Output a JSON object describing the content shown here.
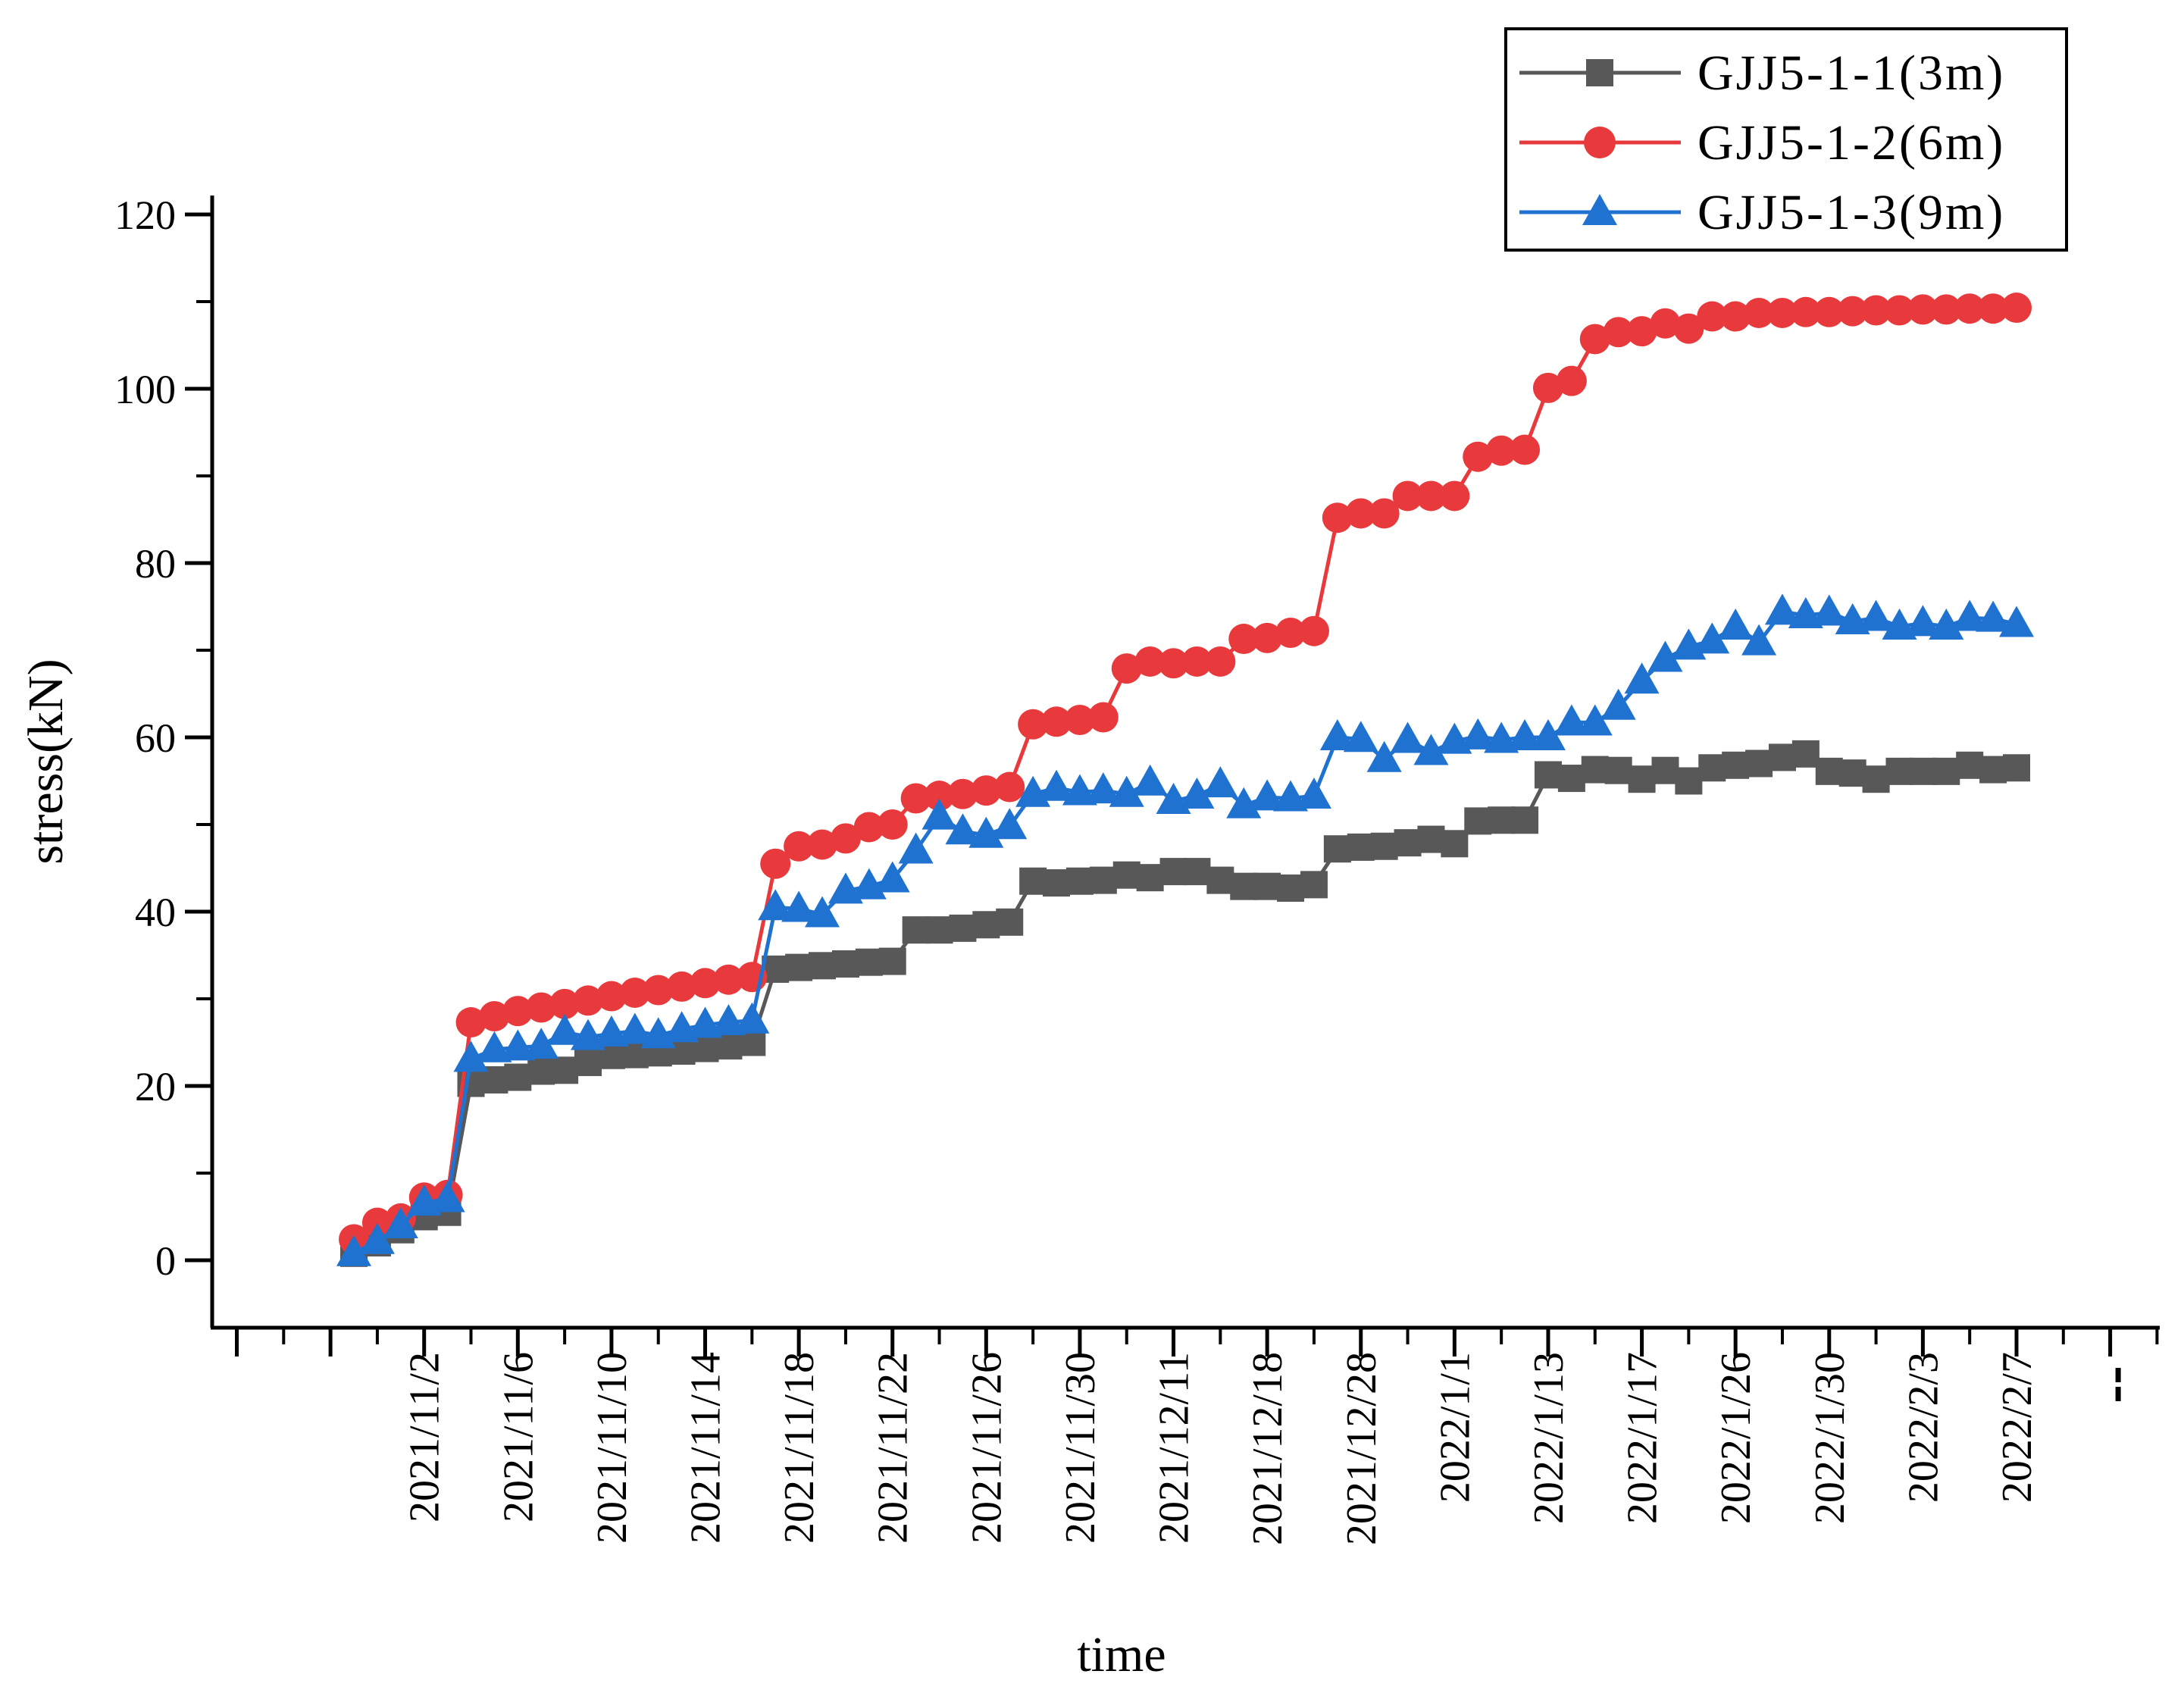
{
  "chart_data": {
    "type": "line",
    "title": "",
    "xlabel": "time",
    "ylabel": "stress(kN)",
    "ylim": [
      0,
      120
    ],
    "y_major_step": 20,
    "y_minor_step": 10,
    "grid": "off",
    "legend_position": "top-right",
    "axis_color": "#000000",
    "n_points": 72,
    "x_labels": [
      {
        "i": 3,
        "text": "2021/11/2"
      },
      {
        "i": 7,
        "text": "2021/11/6"
      },
      {
        "i": 11,
        "text": "2021/11/10"
      },
      {
        "i": 15,
        "text": "2021/11/14"
      },
      {
        "i": 19,
        "text": "2021/11/18"
      },
      {
        "i": 23,
        "text": "2021/11/22"
      },
      {
        "i": 27,
        "text": "2021/11/26"
      },
      {
        "i": 31,
        "text": "2021/11/30"
      },
      {
        "i": 35,
        "text": "2021/12/11"
      },
      {
        "i": 39,
        "text": "2021/12/18"
      },
      {
        "i": 43,
        "text": "2021/12/28"
      },
      {
        "i": 47,
        "text": "2022/1/1"
      },
      {
        "i": 51,
        "text": "2022/1/13"
      },
      {
        "i": 55,
        "text": "2022/1/17"
      },
      {
        "i": 59,
        "text": "2022/1/26"
      },
      {
        "i": 63,
        "text": "2022/1/30"
      },
      {
        "i": 67,
        "text": "2022/2/3"
      },
      {
        "i": 71,
        "text": "2022/2/7"
      }
    ],
    "x_axis_truncation_mark": {
      "tick_index": 75,
      "glyph": "vertical-dashes"
    },
    "series": [
      {
        "name": "GJJ5-1-1(3m)",
        "marker": "square",
        "color": "#585858",
        "values": [
          0.8,
          2.0,
          3.5,
          5.0,
          5.5,
          20.3,
          20.7,
          21.0,
          21.7,
          21.8,
          22.7,
          23.5,
          23.6,
          23.8,
          24.0,
          24.3,
          24.6,
          25.0,
          33.4,
          33.6,
          33.8,
          34.0,
          34.2,
          34.3,
          37.9,
          37.9,
          38.1,
          38.5,
          38.8,
          43.5,
          43.3,
          43.5,
          43.6,
          44.2,
          43.9,
          44.6,
          44.6,
          43.6,
          42.9,
          42.9,
          42.7,
          43.1,
          47.2,
          47.4,
          47.5,
          47.9,
          48.3,
          47.8,
          50.4,
          50.5,
          50.5,
          55.7,
          55.3,
          56.3,
          56.2,
          55.2,
          56.2,
          55.0,
          56.5,
          56.8,
          57.0,
          57.7,
          58.1,
          56.1,
          55.9,
          55.2,
          56.1,
          56.1,
          56.1,
          56.8,
          56.3,
          56.5
        ]
      },
      {
        "name": "GJJ5-1-2(6m)",
        "marker": "circle",
        "color": "#E83A3C",
        "values": [
          2.4,
          4.3,
          4.8,
          7.2,
          7.5,
          27.3,
          28.0,
          28.6,
          29.0,
          29.4,
          29.8,
          30.3,
          30.7,
          31.0,
          31.4,
          31.8,
          32.2,
          32.5,
          45.5,
          47.5,
          47.7,
          48.4,
          49.7,
          50.0,
          53.0,
          53.3,
          53.5,
          53.9,
          54.3,
          61.5,
          61.8,
          62.0,
          62.3,
          67.9,
          68.7,
          68.5,
          68.7,
          68.7,
          71.3,
          71.4,
          72.0,
          72.2,
          85.2,
          85.7,
          85.7,
          87.7,
          87.7,
          87.7,
          92.2,
          92.9,
          93.0,
          100.1,
          100.9,
          105.7,
          106.5,
          106.6,
          107.5,
          106.9,
          108.3,
          108.3,
          108.7,
          108.7,
          108.8,
          108.8,
          108.9,
          109.0,
          109.0,
          109.1,
          109.1,
          109.2,
          109.2,
          109.3
        ]
      },
      {
        "name": "GJJ5-1-3(9m)",
        "marker": "triangle",
        "color": "#1F72D0",
        "values": [
          0.8,
          2.2,
          4.0,
          6.6,
          7.0,
          23.1,
          24.2,
          24.4,
          24.6,
          26.2,
          25.6,
          26.0,
          26.3,
          25.8,
          26.5,
          27.0,
          27.3,
          27.5,
          40.5,
          40.3,
          39.7,
          42.4,
          42.9,
          43.7,
          47.0,
          50.9,
          49.2,
          48.8,
          49.8,
          53.5,
          54.2,
          53.7,
          53.9,
          53.5,
          54.8,
          52.7,
          53.3,
          54.6,
          52.2,
          53.1,
          53.0,
          53.3,
          60.0,
          59.8,
          57.5,
          59.7,
          58.3,
          59.6,
          60.1,
          59.7,
          60.0,
          60.0,
          61.7,
          61.7,
          63.5,
          66.5,
          69.0,
          70.4,
          71.1,
          72.7,
          70.9,
          74.4,
          74.0,
          74.3,
          73.3,
          73.7,
          72.7,
          73.1,
          72.7,
          73.7,
          73.6,
          73.0
        ]
      }
    ]
  }
}
